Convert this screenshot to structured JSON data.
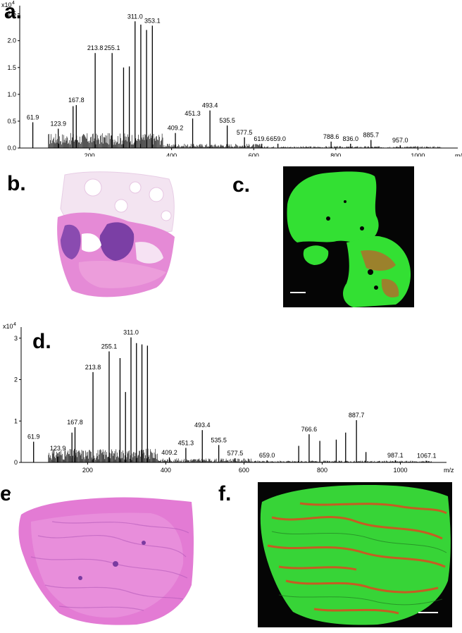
{
  "panels": {
    "a": "a.",
    "b": "b.",
    "c": "c.",
    "d": "d.",
    "e": "e.",
    "f": "f."
  },
  "chart_data": [
    {
      "type": "line",
      "panel": "a",
      "xlabel": "m/z",
      "ylabel": "",
      "y_exponent_label": "x10",
      "y_exponent_power": "4",
      "xlim": [
        30,
        1080
      ],
      "ylim": [
        0,
        2.6
      ],
      "x_ticks": [
        "200",
        "400",
        "600",
        "800",
        "1000"
      ],
      "y_ticks": [
        "0.0",
        "0.5",
        "1.0",
        "1.5",
        "2.0",
        "2.5"
      ],
      "peaks": [
        {
          "x": 61.9,
          "y": 0.48,
          "label": "61.9"
        },
        {
          "x": 123.9,
          "y": 0.36,
          "label": "123.9"
        },
        {
          "x": 160.0,
          "y": 0.78
        },
        {
          "x": 167.8,
          "y": 0.8,
          "label": "167.8"
        },
        {
          "x": 213.8,
          "y": 1.77,
          "label": "213.8"
        },
        {
          "x": 255.1,
          "y": 1.77,
          "label": "255.1"
        },
        {
          "x": 283.0,
          "y": 1.5
        },
        {
          "x": 297.0,
          "y": 1.52
        },
        {
          "x": 311.0,
          "y": 2.36,
          "label": "311.0"
        },
        {
          "x": 325.0,
          "y": 2.3
        },
        {
          "x": 339.0,
          "y": 2.2
        },
        {
          "x": 353.1,
          "y": 2.28,
          "label": "353.1"
        },
        {
          "x": 409.2,
          "y": 0.28,
          "label": "409.2"
        },
        {
          "x": 451.3,
          "y": 0.55,
          "label": "451.3"
        },
        {
          "x": 493.4,
          "y": 0.7,
          "label": "493.4"
        },
        {
          "x": 535.5,
          "y": 0.42,
          "label": "535.5"
        },
        {
          "x": 577.5,
          "y": 0.2,
          "label": "577.5"
        },
        {
          "x": 619.6,
          "y": 0.08,
          "label": "619.6"
        },
        {
          "x": 659.0,
          "y": 0.08,
          "label": "659.0"
        },
        {
          "x": 788.6,
          "y": 0.12,
          "label": "788.6"
        },
        {
          "x": 836.0,
          "y": 0.08,
          "label": "836.0"
        },
        {
          "x": 885.7,
          "y": 0.15,
          "label": "885.7"
        },
        {
          "x": 957.0,
          "y": 0.05,
          "label": "957.0"
        }
      ]
    },
    {
      "type": "line",
      "panel": "d",
      "xlabel": "m/z",
      "ylabel": "",
      "y_exponent_label": "x10",
      "y_exponent_power": "4",
      "xlim": [
        30,
        1100
      ],
      "ylim": [
        0,
        3.2
      ],
      "x_ticks": [
        "200",
        "400",
        "600",
        "800",
        "1000"
      ],
      "y_ticks": [
        "0",
        "1",
        "2",
        "3"
      ],
      "peaks": [
        {
          "x": 61.9,
          "y": 0.5,
          "label": "61.9"
        },
        {
          "x": 123.9,
          "y": 0.22,
          "label": "123.9"
        },
        {
          "x": 160.0,
          "y": 0.72
        },
        {
          "x": 167.8,
          "y": 0.85,
          "label": "167.8"
        },
        {
          "x": 213.8,
          "y": 2.18,
          "label": "213.8"
        },
        {
          "x": 255.1,
          "y": 2.68,
          "label": "255.1"
        },
        {
          "x": 283.0,
          "y": 2.52
        },
        {
          "x": 297.0,
          "y": 1.7
        },
        {
          "x": 311.0,
          "y": 3.02,
          "label": "311.0"
        },
        {
          "x": 325.0,
          "y": 2.88
        },
        {
          "x": 339.0,
          "y": 2.85
        },
        {
          "x": 353.1,
          "y": 2.82
        },
        {
          "x": 409.2,
          "y": 0.12,
          "label": "409.2"
        },
        {
          "x": 451.3,
          "y": 0.35,
          "label": "451.3"
        },
        {
          "x": 493.4,
          "y": 0.78,
          "label": "493.4"
        },
        {
          "x": 535.5,
          "y": 0.42,
          "label": "535.5"
        },
        {
          "x": 577.5,
          "y": 0.1,
          "label": "577.5"
        },
        {
          "x": 659.0,
          "y": 0.05,
          "label": "659.0"
        },
        {
          "x": 740.0,
          "y": 0.4
        },
        {
          "x": 766.6,
          "y": 0.68,
          "label": "766.6"
        },
        {
          "x": 794.0,
          "y": 0.52
        },
        {
          "x": 836.0,
          "y": 0.55
        },
        {
          "x": 860.0,
          "y": 0.72
        },
        {
          "x": 887.7,
          "y": 1.02,
          "label": "887.7"
        },
        {
          "x": 912.0,
          "y": 0.25
        },
        {
          "x": 987.1,
          "y": 0.05,
          "label": "987.1"
        },
        {
          "x": 1067.1,
          "y": 0.04,
          "label": "1067.1"
        }
      ]
    }
  ],
  "colors": {
    "he_stain": "#e07ad0",
    "he_nuclei": "#6a3ea0",
    "fluor_green": "#2fe02f",
    "fluor_red": "#e04020",
    "fluor_bg": "#050505"
  }
}
